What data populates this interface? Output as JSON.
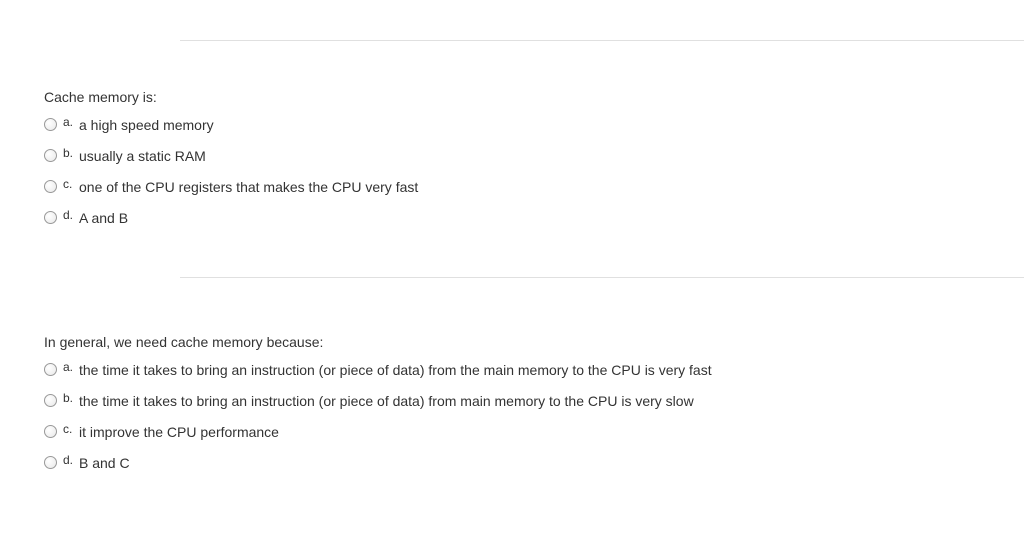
{
  "colors": {
    "text": "#333333",
    "divider": "#e0e0e0",
    "background": "#ffffff",
    "radio_border": "#999999"
  },
  "typography": {
    "base_font": "Arial, Helvetica, sans-serif",
    "question_fontsize": 14,
    "option_fontsize": 14,
    "letter_fontsize": 12
  },
  "questions": [
    {
      "prompt": "Cache memory is:",
      "options": [
        {
          "letter": "a.",
          "text": "a high speed memory"
        },
        {
          "letter": "b.",
          "text": "usually a static RAM"
        },
        {
          "letter": "c.",
          "text": "one of the CPU registers that makes the CPU very fast"
        },
        {
          "letter": "d.",
          "text": "A and B"
        }
      ]
    },
    {
      "prompt": "In general, we need cache memory because:",
      "options": [
        {
          "letter": "a.",
          "text": "the time it takes to bring an instruction (or piece of data) from the main  memory to the CPU is very fast"
        },
        {
          "letter": "b.",
          "text": "the time it takes to bring an instruction (or piece of data) from main memory to the CPU is very slow"
        },
        {
          "letter": "c.",
          "text": "it  improve the CPU performance"
        },
        {
          "letter": "d.",
          "text": "B and C"
        }
      ]
    }
  ]
}
